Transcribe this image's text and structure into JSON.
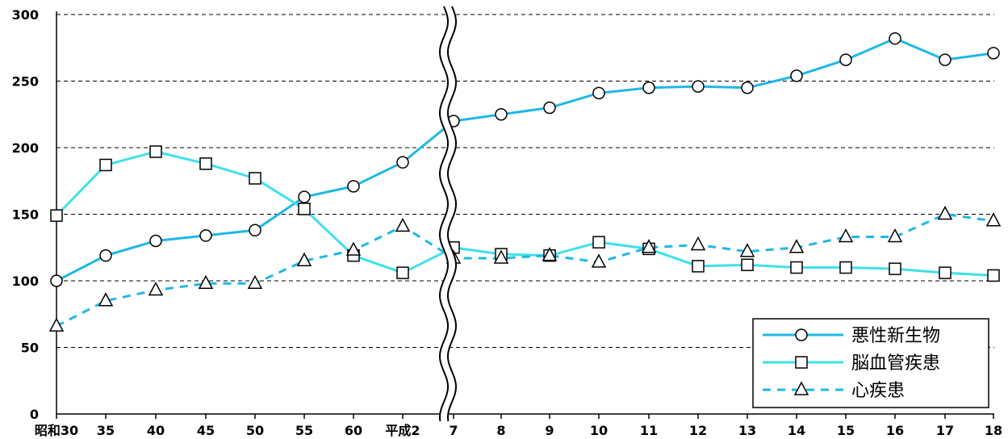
{
  "chart_data": {
    "type": "line",
    "categories": [
      "昭和30",
      "35",
      "40",
      "45",
      "50",
      "55",
      "60",
      "平成2",
      "7",
      "8",
      "9",
      "10",
      "11",
      "12",
      "13",
      "14",
      "15",
      "16",
      "17",
      "18"
    ],
    "ylim": [
      0,
      300
    ],
    "yticks": [
      "0",
      "50",
      "100",
      "150",
      "200",
      "250",
      "300"
    ],
    "grid": true,
    "axis_break_after_category": "平成2",
    "legend_position": "bottom-right",
    "series": [
      {
        "name": "悪性新生物",
        "marker": "circle",
        "style": "solid",
        "color": "#1fb8e6",
        "values": [
          100,
          119,
          130,
          134,
          138,
          163,
          171,
          189,
          220,
          225,
          230,
          241,
          245,
          246,
          245,
          254,
          266,
          282,
          266,
          271
        ]
      },
      {
        "name": "脳血管疾患",
        "marker": "square",
        "style": "solid",
        "color": "#3ee0ec",
        "values": [
          149,
          187,
          197,
          188,
          177,
          154,
          119,
          106,
          125,
          120,
          119,
          129,
          124,
          111,
          112,
          110,
          110,
          109,
          106,
          104
        ]
      },
      {
        "name": "心疾患",
        "marker": "triangle",
        "style": "dashed",
        "color": "#1fb8e6",
        "values": [
          66,
          85,
          93,
          98,
          98,
          115,
          123,
          141,
          117,
          117,
          119,
          114,
          125,
          127,
          122,
          125,
          133,
          133,
          150,
          145
        ]
      }
    ]
  }
}
